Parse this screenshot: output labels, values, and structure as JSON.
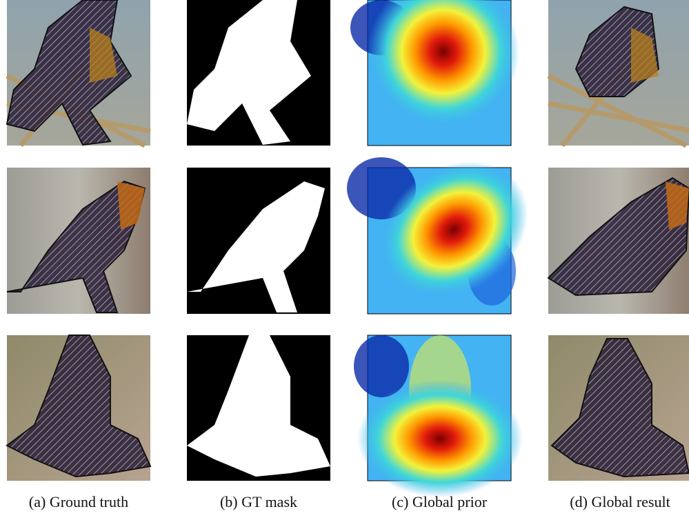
{
  "captions": [
    "(a) Ground truth",
    "(b) GT mask",
    "(c) Global prior",
    "(d) Global result"
  ]
}
